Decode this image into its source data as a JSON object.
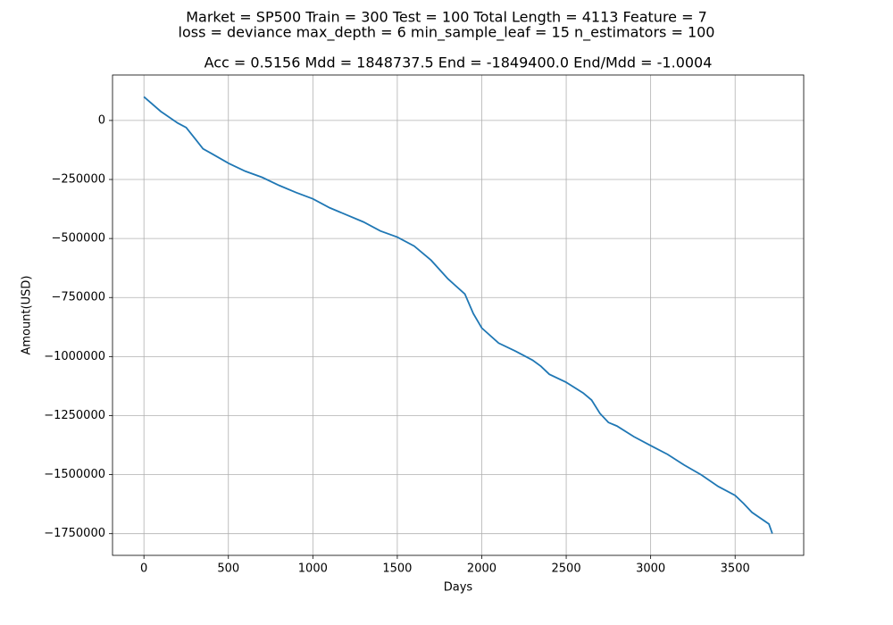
{
  "chart_data": {
    "type": "line",
    "title_lines": [
      "Market = SP500  Train = 300  Test = 100  Total Length = 4113  Feature = 7",
      "loss = deviance  max_depth = 6  min_sample_leaf = 15  n_estimators = 100"
    ],
    "axes_title": "Acc = 0.5156  Mdd = 1848737.5  End = -1849400.0  End/Mdd = -1.0004",
    "x_label": "Days",
    "y_label": "Amount(USD)",
    "x": [
      0,
      100,
      200,
      250,
      300,
      350,
      400,
      500,
      600,
      700,
      800,
      900,
      1000,
      1100,
      1200,
      1300,
      1400,
      1500,
      1600,
      1700,
      1800,
      1900,
      1950,
      2000,
      2100,
      2200,
      2300,
      2350,
      2400,
      2500,
      2600,
      2650,
      2700,
      2750,
      2800,
      2900,
      3000,
      3100,
      3200,
      3300,
      3400,
      3500,
      3550,
      3600,
      3700,
      3720
    ],
    "series": [
      {
        "color": "#1f77b4",
        "values": [
          100000,
          38000,
          -11000,
          -30000,
          -75000,
          -120000,
          -140000,
          -181000,
          -215000,
          -241000,
          -275000,
          -305000,
          -332000,
          -370000,
          -400000,
          -430000,
          -468000,
          -494000,
          -532000,
          -592000,
          -671000,
          -735000,
          -818000,
          -879000,
          -943000,
          -977000,
          -1015000,
          -1041000,
          -1075000,
          -1109000,
          -1154000,
          -1184000,
          -1241000,
          -1279000,
          -1294000,
          -1339000,
          -1377000,
          -1414000,
          -1460000,
          -1501000,
          -1550000,
          -1588000,
          -1622000,
          -1660000,
          -1709000,
          -1749400
        ]
      }
    ],
    "xlim": [
      -186,
      3906
    ],
    "ylim": [
      -1841870,
      192470
    ],
    "xticks": [
      0,
      500,
      1000,
      1500,
      2000,
      2500,
      3000,
      3500
    ],
    "yticks": [
      0,
      {
        "value": -250000,
        "label": "−250000"
      },
      {
        "value": -500000,
        "label": "−500000"
      },
      {
        "value": -750000,
        "label": "−750000"
      },
      {
        "value": -1000000,
        "label": "−1000000"
      },
      {
        "value": -1250000,
        "label": "−1250000"
      },
      {
        "value": -1500000,
        "label": "−1500000"
      },
      {
        "value": -1750000,
        "label": "−1750000"
      }
    ],
    "grid": true
  }
}
